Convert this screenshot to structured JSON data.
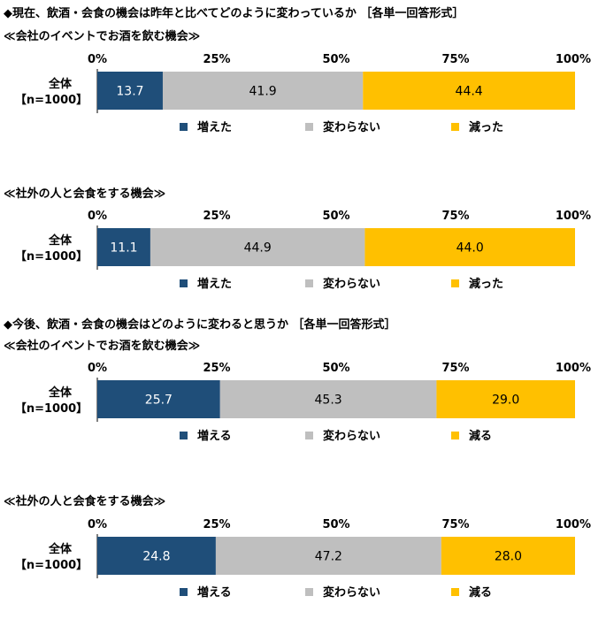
{
  "headings": [
    "◆現在、飲酒・会食の機会は昨年と比べてどのように変わっているか ［各単一回答形式］",
    "◆今後、飲酒・会食の機会はどのように変わると思うか ［各単一回答形式］"
  ],
  "colors": {
    "increase": "#1f4e79",
    "same": "#bfbfbf",
    "decrease": "#ffc000"
  },
  "chart_data": [
    {
      "type": "bar",
      "orientation": "horizontal-stacked",
      "title": "≪会社のイベントでお酒を飲む機会≫",
      "row_label": [
        "全体",
        "【n=1000】"
      ],
      "ticks": [
        "0%",
        "25%",
        "50%",
        "75%",
        "100%"
      ],
      "xlim": [
        0,
        100
      ],
      "series": [
        {
          "name": "増えた",
          "values": [
            13.7
          ],
          "label": "13.7"
        },
        {
          "name": "変わらない",
          "values": [
            41.9
          ],
          "label": "41.9"
        },
        {
          "name": "減った",
          "values": [
            44.4
          ],
          "label": "44.4"
        }
      ]
    },
    {
      "type": "bar",
      "orientation": "horizontal-stacked",
      "title": "≪社外の人と会食をする機会≫",
      "row_label": [
        "全体",
        "【n=1000】"
      ],
      "ticks": [
        "0%",
        "25%",
        "50%",
        "75%",
        "100%"
      ],
      "xlim": [
        0,
        100
      ],
      "series": [
        {
          "name": "増えた",
          "values": [
            11.1
          ],
          "label": "11.1"
        },
        {
          "name": "変わらない",
          "values": [
            44.9
          ],
          "label": "44.9"
        },
        {
          "name": "減った",
          "values": [
            44.0
          ],
          "label": "44.0"
        }
      ]
    },
    {
      "type": "bar",
      "orientation": "horizontal-stacked",
      "title": "≪会社のイベントでお酒を飲む機会≫",
      "row_label": [
        "全体",
        "【n=1000】"
      ],
      "ticks": [
        "0%",
        "25%",
        "50%",
        "75%",
        "100%"
      ],
      "xlim": [
        0,
        100
      ],
      "series": [
        {
          "name": "増える",
          "values": [
            25.7
          ],
          "label": "25.7"
        },
        {
          "name": "変わらない",
          "values": [
            45.3
          ],
          "label": "45.3"
        },
        {
          "name": "減る",
          "values": [
            29.0
          ],
          "label": "29.0"
        }
      ]
    },
    {
      "type": "bar",
      "orientation": "horizontal-stacked",
      "title": "≪社外の人と会食をする機会≫",
      "row_label": [
        "全体",
        "【n=1000】"
      ],
      "ticks": [
        "0%",
        "25%",
        "50%",
        "75%",
        "100%"
      ],
      "xlim": [
        0,
        100
      ],
      "series": [
        {
          "name": "増える",
          "values": [
            24.8
          ],
          "label": "24.8"
        },
        {
          "name": "変わらない",
          "values": [
            47.2
          ],
          "label": "47.2"
        },
        {
          "name": "減る",
          "values": [
            28.0
          ],
          "label": "28.0"
        }
      ]
    }
  ]
}
